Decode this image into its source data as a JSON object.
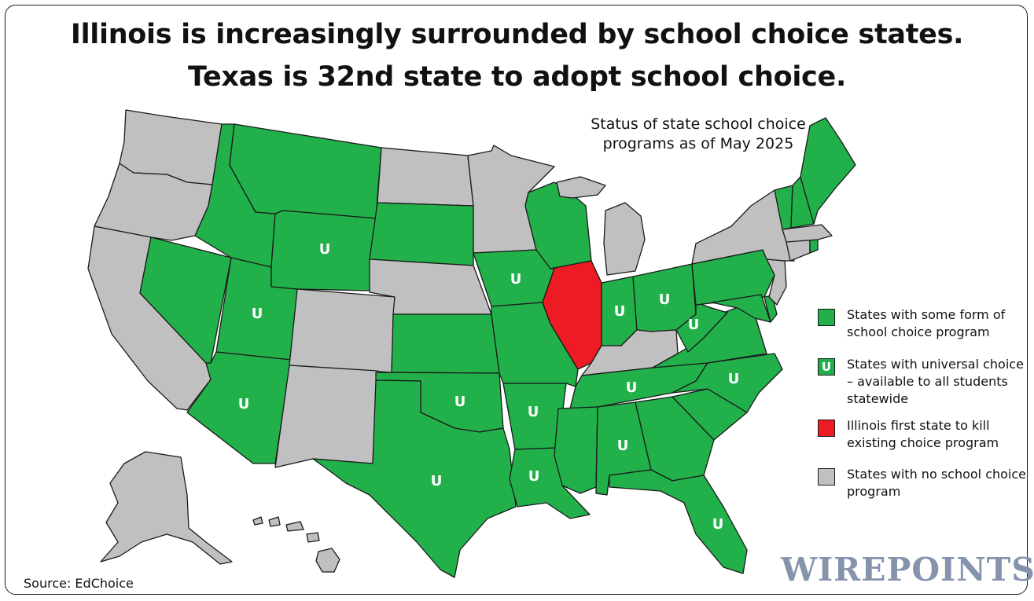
{
  "title": {
    "line1": "Illinois is increasingly surrounded by school choice states.",
    "line2": "Texas is 32nd state to adopt school choice."
  },
  "status_note": "Status of state school choice programs as of May 2025",
  "legend": {
    "some": {
      "label": "States with some form of school choice program",
      "color": "#22b04b"
    },
    "universal": {
      "symbol": "U",
      "label": "States with universal choice – available to all students statewide",
      "color": "#22b04b"
    },
    "illinois": {
      "label": "Illinois first state to kill existing choice program",
      "color": "#ed1c24"
    },
    "none": {
      "label": "States with no school choice program",
      "color": "#c0c0c0"
    }
  },
  "map_labels": {
    "universal_symbol": "U"
  },
  "state_status": {
    "WA": "none",
    "OR": "none",
    "CA": "none",
    "ND": "none",
    "NE": "none",
    "CO": "none",
    "NM": "none",
    "MN": "none",
    "MI": "none",
    "KY": "none",
    "NY": "none",
    "NJ": "none",
    "MA": "none",
    "CT": "none",
    "AK": "none",
    "HI": "none",
    "ID": "some",
    "MT": "some",
    "NV": "some",
    "SD": "some",
    "KS": "some",
    "MO": "some",
    "WI": "some",
    "MS": "some",
    "SC": "some",
    "GA": "some",
    "VA": "some",
    "PA": "some",
    "MD": "some",
    "DE": "some",
    "ME": "some",
    "VT": "some",
    "NH": "some",
    "RI": "some",
    "WY": "universal",
    "UT": "universal",
    "AZ": "universal",
    "TX": "universal",
    "OK": "universal",
    "IA": "universal",
    "AR": "universal",
    "LA": "universal",
    "IN": "universal",
    "OH": "universal",
    "WV": "universal",
    "TN": "universal",
    "NC": "universal",
    "AL": "universal",
    "FL": "universal",
    "IL": "illinois"
  },
  "source": "Source: EdChoice",
  "logo": "WIREPOINTS"
}
